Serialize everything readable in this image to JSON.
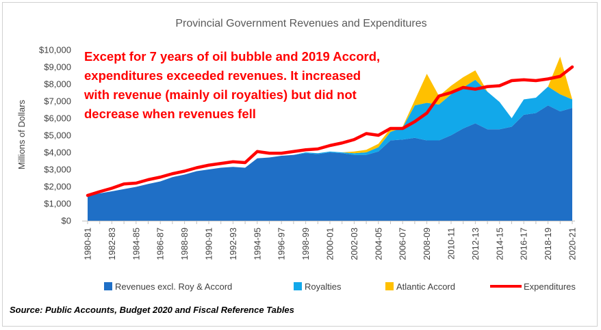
{
  "chart_data": {
    "type": "area",
    "title": "Provincial Government Revenues and Expenditures",
    "ylabel": "Millions of Dollars",
    "xlabel": "",
    "ylim": [
      0,
      10000
    ],
    "y_ticks": [
      "$0",
      "$1,000",
      "$2,000",
      "$3,000",
      "$4,000",
      "$5,000",
      "$6,000",
      "$7,000",
      "$8,000",
      "$9,000",
      "$10,000"
    ],
    "x_tick_labels": [
      "1980-81",
      "1982-83",
      "1984-85",
      "1986-87",
      "1988-89",
      "1990-91",
      "1992-93",
      "1994-95",
      "1996-97",
      "1998-99",
      "2000-01",
      "2002-03",
      "2004-05",
      "2006-07",
      "2008-09",
      "2010-11",
      "2012-13",
      "2014-15",
      "2016-17",
      "2018-19",
      "2020-21"
    ],
    "start_year": 1980,
    "grid": false,
    "legend_position": "bottom",
    "series": [
      {
        "name": "Revenues excl. Roy & Accord",
        "kind": "area",
        "color": "#1f6fc6",
        "values": [
          1450,
          1600,
          1720,
          1850,
          1980,
          2150,
          2300,
          2550,
          2700,
          2900,
          3000,
          3100,
          3150,
          3100,
          3650,
          3700,
          3800,
          3850,
          3950,
          3900,
          4000,
          3950,
          3850,
          3850,
          4050,
          4700,
          4750,
          4850,
          4700,
          4700,
          5000,
          5400,
          5700,
          5350,
          5350,
          5500,
          6200,
          6300,
          6750,
          6400,
          6600
        ]
      },
      {
        "name": "Royalties",
        "kind": "area",
        "color": "#12a8ea",
        "values": [
          0,
          0,
          0,
          0,
          0,
          0,
          0,
          0,
          0,
          0,
          0,
          0,
          0,
          0,
          0,
          0,
          0,
          0,
          50,
          50,
          50,
          50,
          100,
          150,
          250,
          500,
          700,
          1900,
          2200,
          2100,
          2400,
          2400,
          2550,
          2200,
          1600,
          500,
          900,
          900,
          1100,
          1000,
          500
        ]
      },
      {
        "name": "Atlantic Accord",
        "kind": "area",
        "color": "#ffc000",
        "values": [
          0,
          0,
          0,
          0,
          0,
          0,
          0,
          0,
          0,
          0,
          0,
          0,
          0,
          0,
          0,
          0,
          0,
          0,
          0,
          0,
          0,
          0,
          100,
          150,
          200,
          200,
          50,
          300,
          1700,
          500,
          500,
          600,
          550,
          0,
          0,
          0,
          0,
          0,
          0,
          2200,
          0
        ]
      },
      {
        "name": "Expenditures",
        "kind": "line",
        "color": "#ff0000",
        "values": [
          1480,
          1700,
          1900,
          2150,
          2200,
          2400,
          2550,
          2750,
          2900,
          3100,
          3250,
          3350,
          3450,
          3400,
          4050,
          3950,
          3950,
          4050,
          4150,
          4200,
          4400,
          4550,
          4750,
          5100,
          5000,
          5400,
          5400,
          5800,
          6300,
          7300,
          7500,
          7800,
          7700,
          7850,
          7900,
          8200,
          8250,
          8200,
          8300,
          8450,
          9000
        ]
      }
    ],
    "annotation": [
      "Except for 7 years of oil bubble and 2019 Accord,",
      "expenditures exceeded revenues. It increased",
      "with revenue (mainly oil royalties) but did not",
      "decrease when revenues fell"
    ],
    "source": "Source: Public Accounts, Budget 2020 and Fiscal Reference Tables"
  }
}
